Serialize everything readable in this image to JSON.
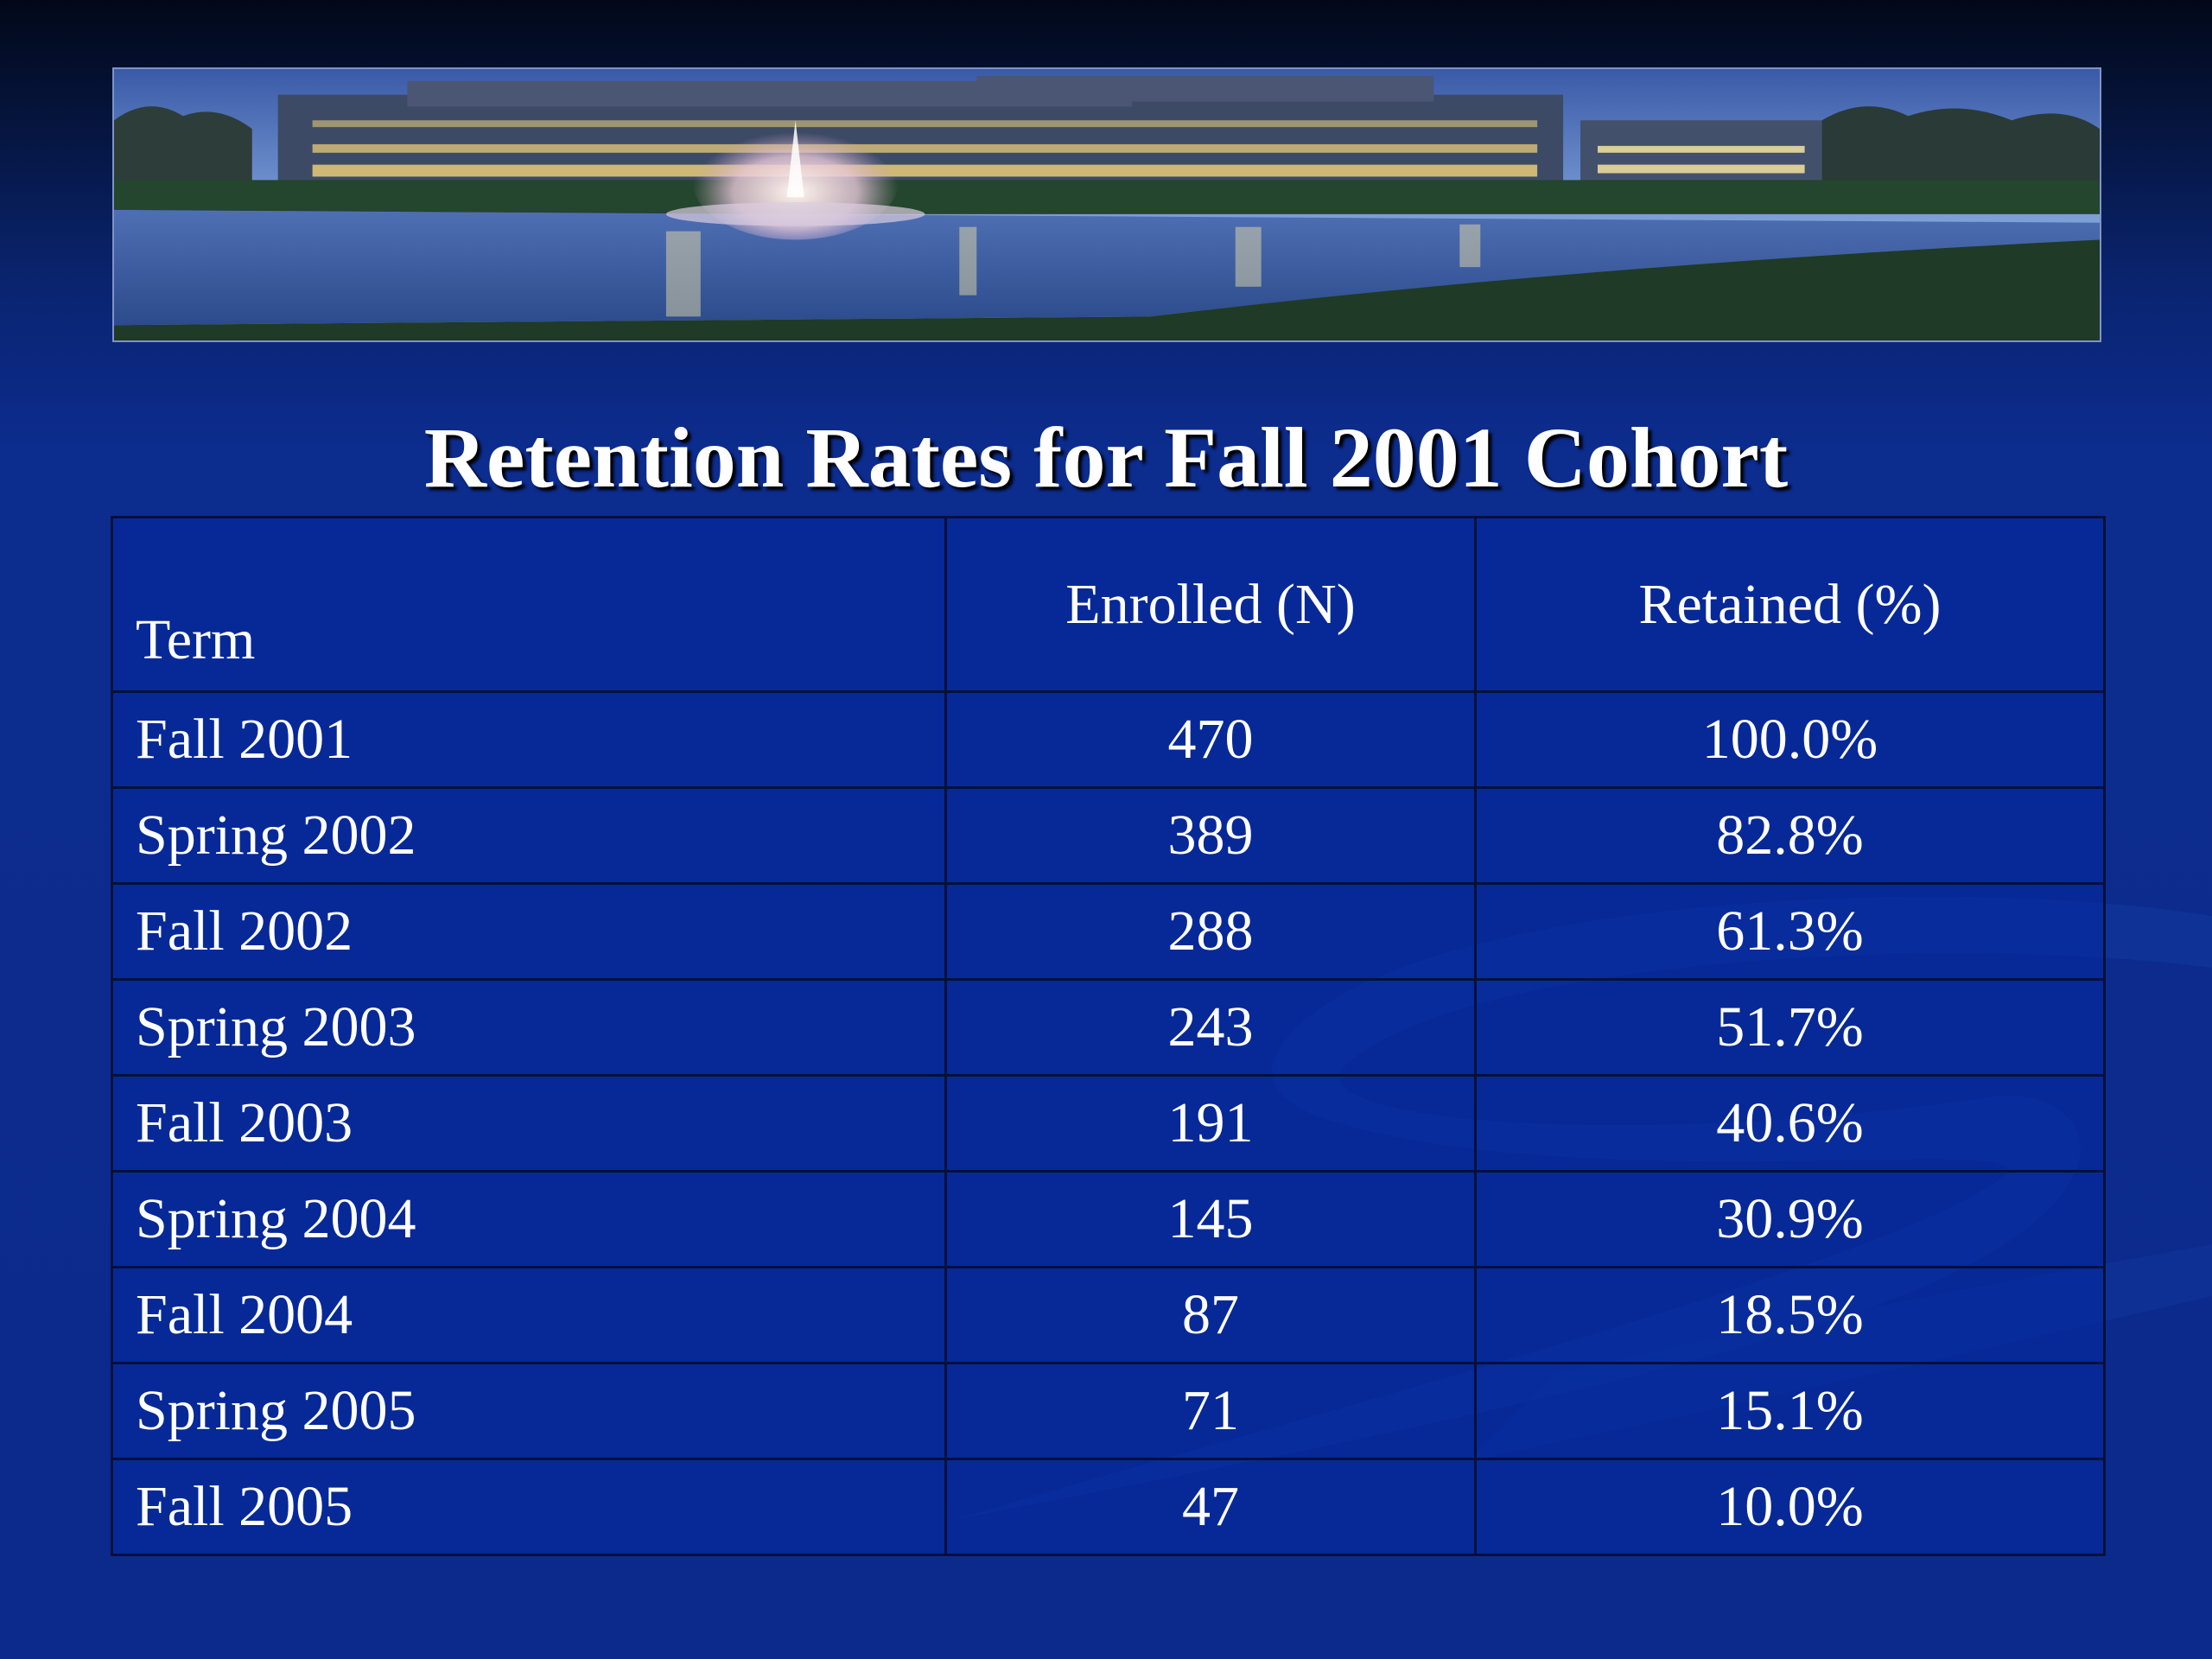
{
  "slide": {
    "title": "Retention Rates for Fall 2001 Cohort",
    "banner_image": "campus-fountain-night-photo"
  },
  "table": {
    "headers": [
      "Term",
      "Enrolled (N)",
      "Retained (%)"
    ],
    "rows": [
      [
        "Fall 2001",
        "470",
        "100.0%"
      ],
      [
        "Spring 2002",
        "389",
        "82.8%"
      ],
      [
        "Fall 2002",
        "288",
        "61.3%"
      ],
      [
        "Spring 2003",
        "243",
        "51.7%"
      ],
      [
        "Fall 2003",
        "191",
        "40.6%"
      ],
      [
        "Spring 2004",
        "145",
        "30.9%"
      ],
      [
        "Fall 2004",
        "87",
        "18.5%"
      ],
      [
        "Spring 2005",
        "71",
        "15.1%"
      ],
      [
        "Fall 2005",
        "47",
        "10.0%"
      ]
    ]
  },
  "colors": {
    "background": "#0b2a8c",
    "text": "#ffffff",
    "grid": "#07103a"
  }
}
